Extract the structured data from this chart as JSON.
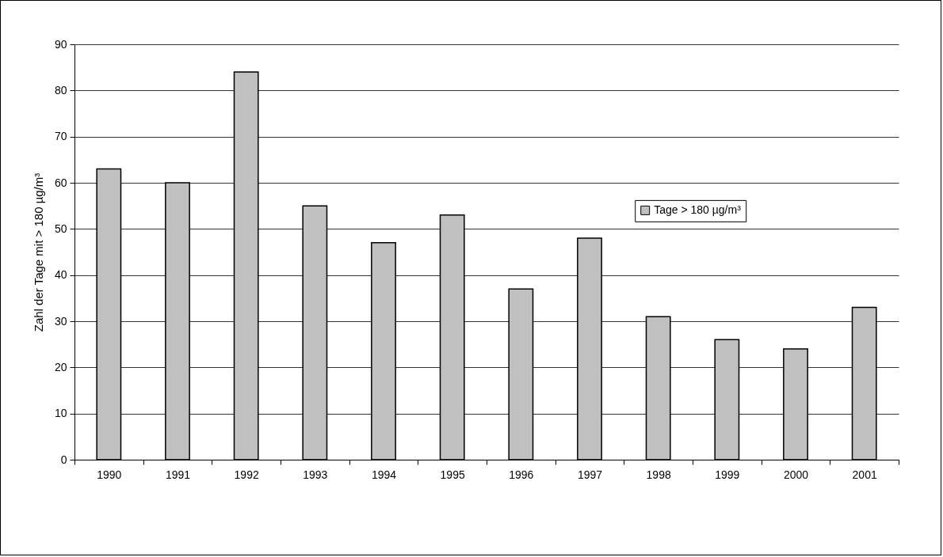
{
  "chart_data": {
    "type": "bar",
    "ylabel": "Zahl der Tage mit > 180 µg/m³",
    "categories": [
      "1990",
      "1991",
      "1992",
      "1993",
      "1994",
      "1995",
      "1996",
      "1997",
      "1998",
      "1999",
      "2000",
      "2001"
    ],
    "series": [
      {
        "name": "Tage > 180 µg/m³",
        "color": "#c0c0c0",
        "values": [
          63,
          60,
          84,
          55,
          47,
          53,
          37,
          48,
          31,
          26,
          24,
          33
        ]
      }
    ],
    "ylim": [
      0,
      90
    ],
    "yticks": [
      0,
      10,
      20,
      30,
      40,
      50,
      60,
      70,
      80,
      90
    ],
    "grid": "y",
    "legend": "right"
  }
}
